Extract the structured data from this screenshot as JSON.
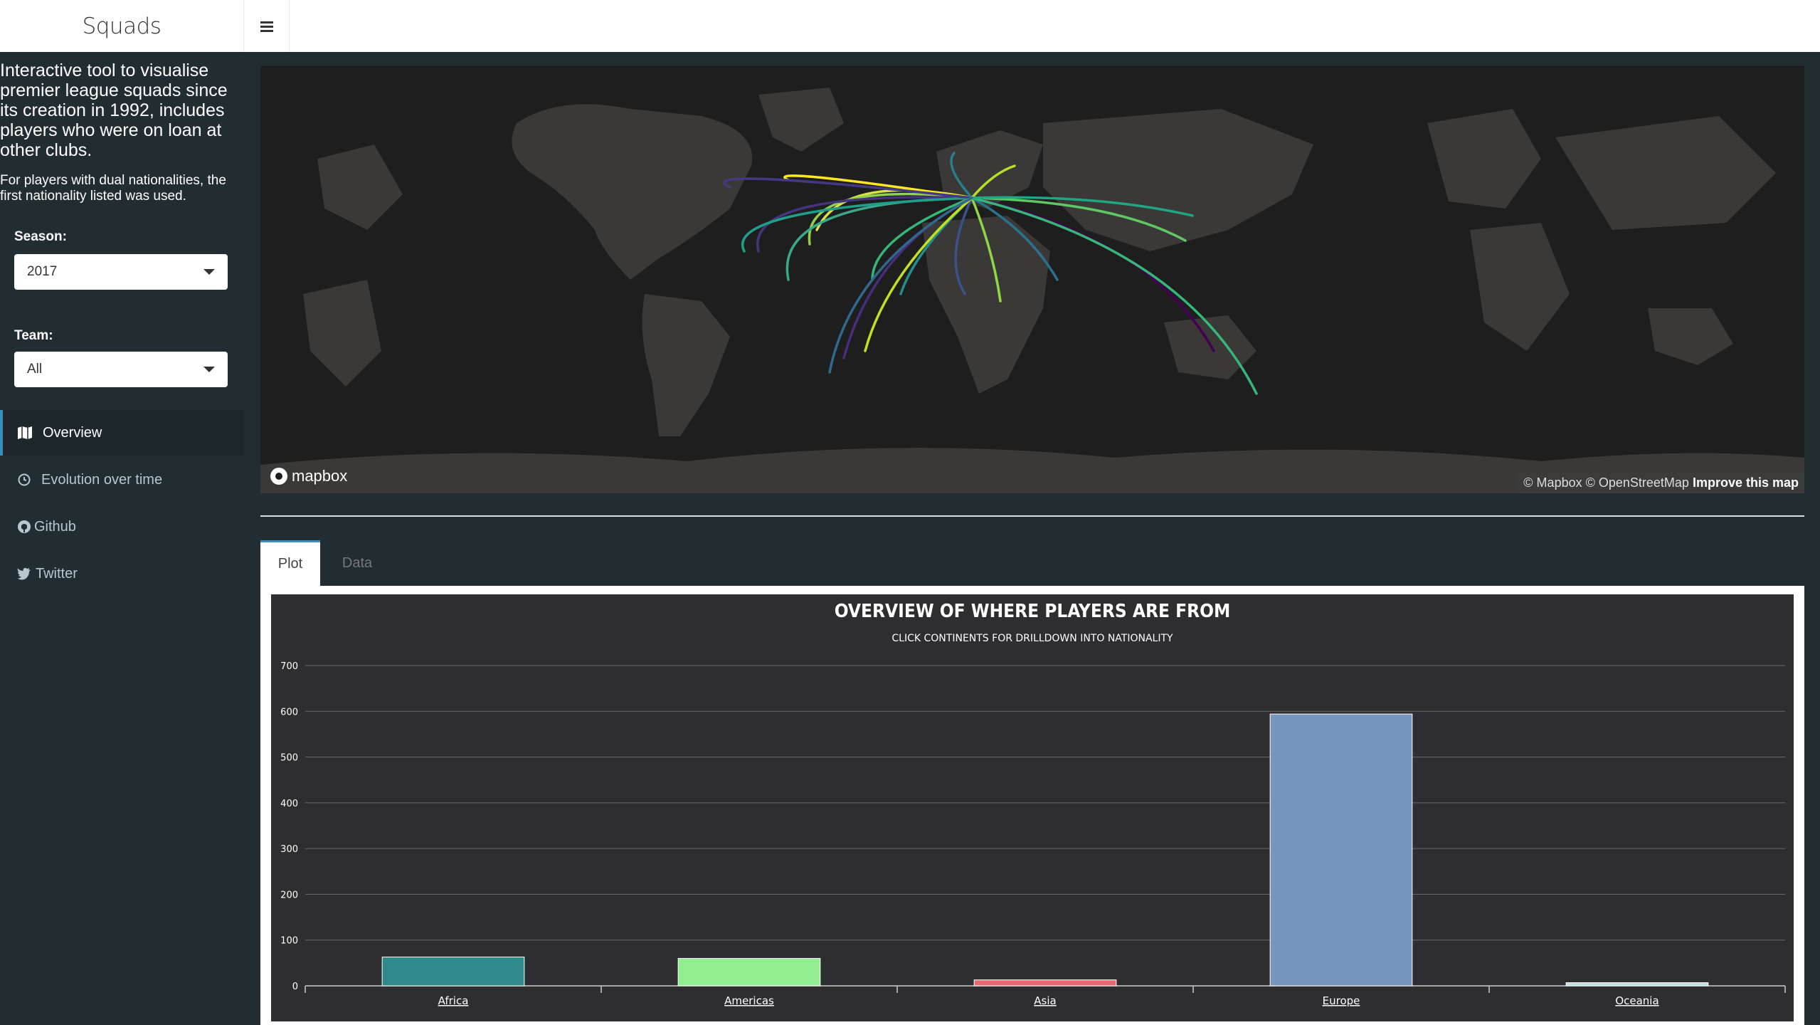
{
  "header": {
    "brand": "Squads"
  },
  "sidebar": {
    "intro": "Interactive tool to visualise premier league squads since its creation in 1992, includes players who were on loan at other clubs.",
    "note": "For players with dual nationalities, the first nationality listed was used.",
    "season": {
      "label": "Season:",
      "value": "2017"
    },
    "team": {
      "label": "Team:",
      "value": "All"
    },
    "menu": [
      {
        "label": "Overview",
        "icon": "map-icon"
      },
      {
        "label": "Evolution over time",
        "icon": "clock-icon"
      },
      {
        "label": "Github",
        "icon": "github-icon"
      },
      {
        "label": "Twitter",
        "icon": "twitter-icon"
      }
    ]
  },
  "map": {
    "logo": "mapbox",
    "attribution": "© Mapbox © OpenStreetMap",
    "improve": "Improve this map"
  },
  "tabs": [
    {
      "label": "Plot"
    },
    {
      "label": "Data"
    }
  ],
  "colors": {
    "bg": "#222d32",
    "accent": "#3c8dbc",
    "chart_bg": "#2e2e30"
  },
  "chart_data": {
    "type": "bar",
    "title": "OVERVIEW OF WHERE PLAYERS ARE FROM",
    "subtitle": "CLICK CONTINENTS FOR DRILLDOWN INTO NATIONALITY",
    "categories": [
      "Africa",
      "Americas",
      "Asia",
      "Europe",
      "Oceania"
    ],
    "values": [
      63,
      60,
      13,
      594,
      7
    ],
    "colors": [
      "#2f8a8a",
      "#90ee90",
      "#e9686f",
      "#7796bf",
      "#b6e3e6"
    ],
    "ylim": [
      0,
      700
    ],
    "yticks": [
      0,
      100,
      200,
      300,
      400,
      500,
      600,
      700
    ],
    "grid": true
  }
}
